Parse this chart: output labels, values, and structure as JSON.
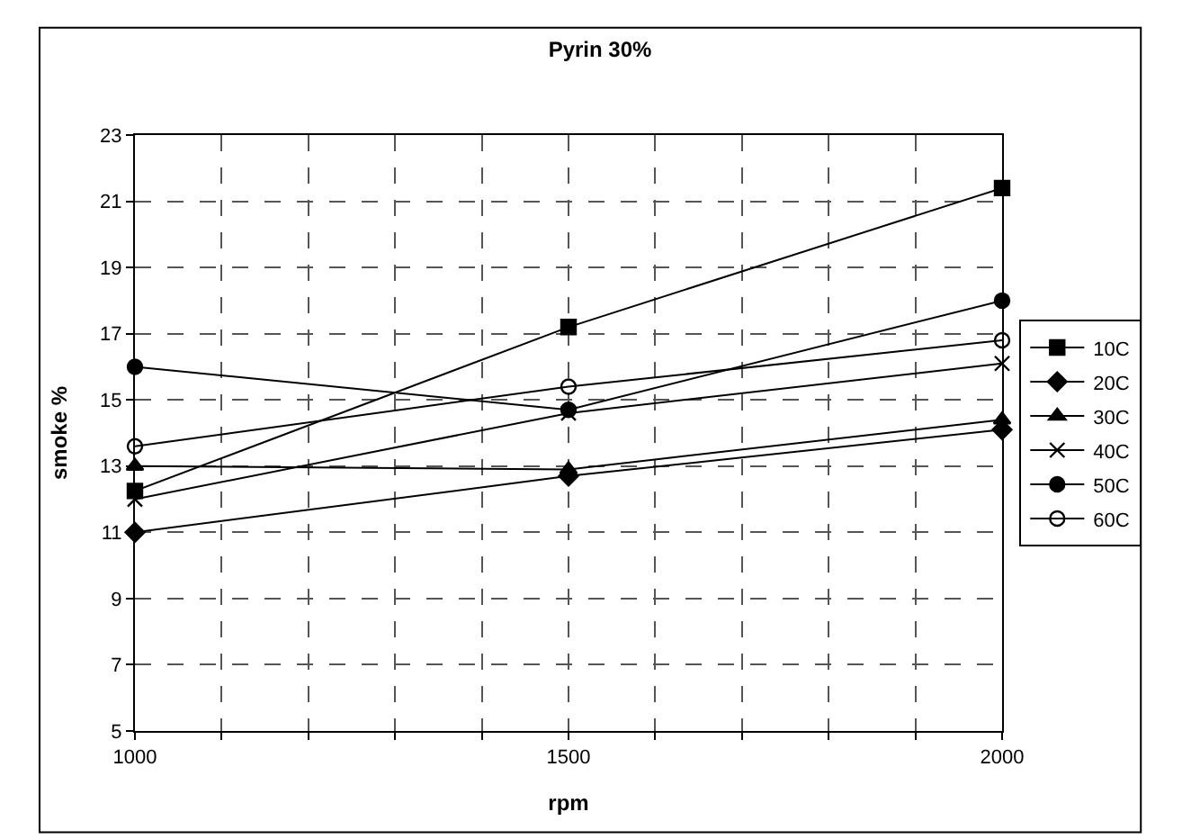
{
  "chart_data": {
    "type": "line",
    "title": "Pyrin 30%",
    "xlabel": "rpm",
    "ylabel": "smoke %",
    "x": [
      1000,
      1500,
      2000
    ],
    "series": [
      {
        "name": "10C",
        "color": "#000000",
        "marker": "square",
        "values": [
          12.25,
          17.2,
          21.4
        ]
      },
      {
        "name": "20C",
        "color": "#000000",
        "marker": "diamond",
        "values": [
          11.0,
          12.7,
          14.1
        ]
      },
      {
        "name": "30C",
        "color": "#000000",
        "marker": "triangle",
        "values": [
          13.0,
          12.9,
          14.4
        ]
      },
      {
        "name": "40C",
        "color": "#000000",
        "marker": "cross",
        "values": [
          12.0,
          14.6,
          16.1
        ]
      },
      {
        "name": "50C",
        "color": "#000000",
        "marker": "circle",
        "values": [
          16.0,
          14.7,
          18.0
        ]
      },
      {
        "name": "60C",
        "color": "#000000",
        "marker": "circle-open",
        "values": [
          13.6,
          15.4,
          16.8
        ]
      }
    ],
    "xlim": [
      1000,
      2000
    ],
    "xticks": [
      1000,
      {
        "value": 1100,
        "label": null
      },
      {
        "value": 1200,
        "label": null
      },
      {
        "value": 1300,
        "label": null
      },
      {
        "value": 1400,
        "label": null
      },
      1500,
      {
        "value": 1600,
        "label": null
      },
      {
        "value": 1700,
        "label": null
      },
      {
        "value": 1800,
        "label": null
      },
      {
        "value": 1900,
        "label": null
      },
      2000
    ],
    "ylim": [
      5,
      23
    ],
    "yticks": [
      5,
      7,
      9,
      11,
      13,
      15,
      17,
      19,
      21,
      23
    ],
    "grid": true,
    "legend": "right",
    "line_style": "solid"
  }
}
